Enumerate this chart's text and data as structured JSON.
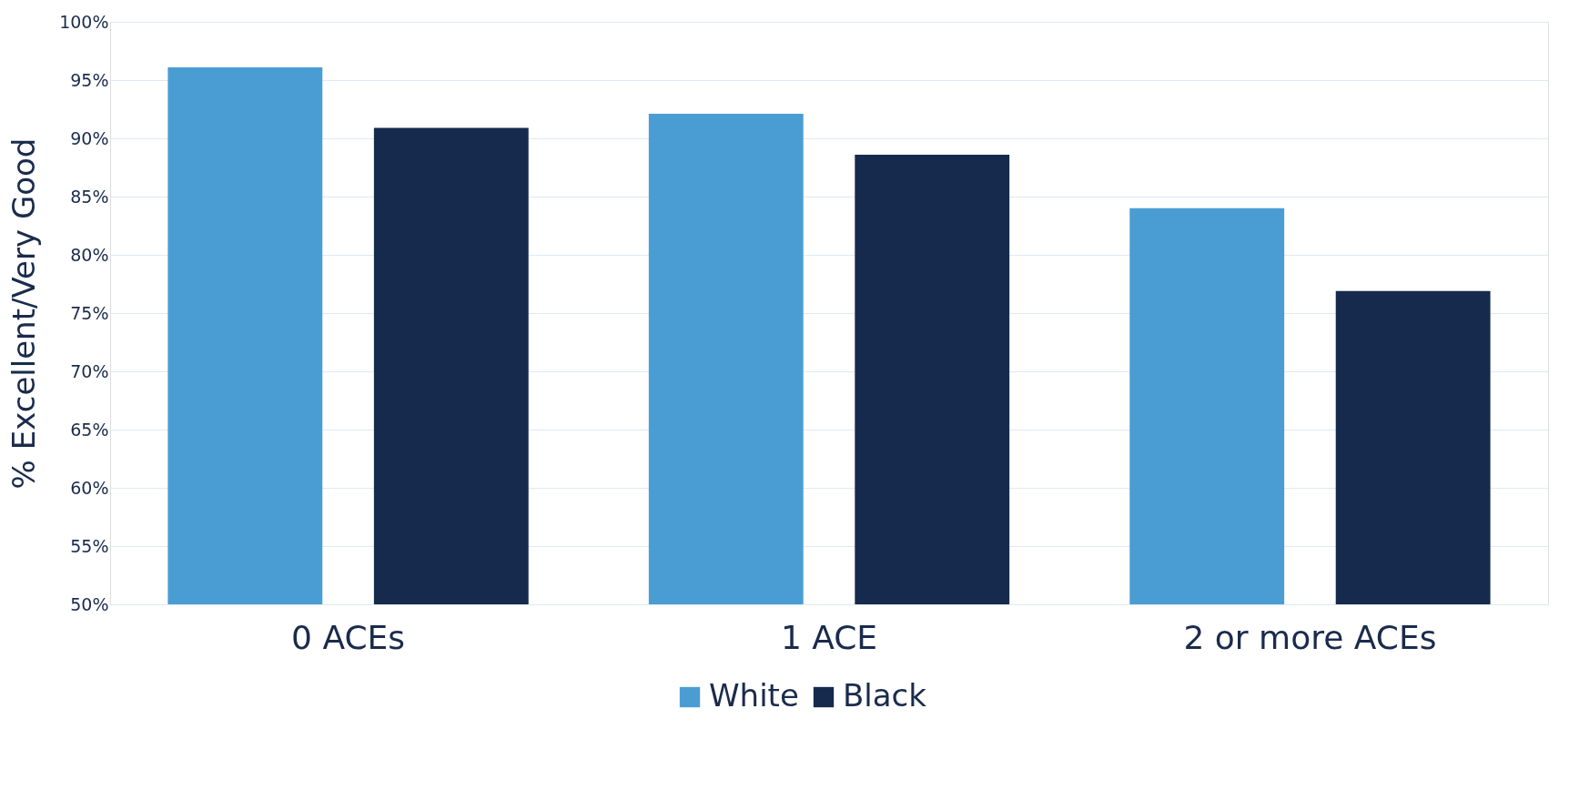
{
  "chart_data": {
    "type": "bar",
    "ylabel": "% Excellent/Very Good",
    "categories": [
      "0 ACEs",
      "1 ACE",
      "2 or more ACEs"
    ],
    "series": [
      {
        "name": "White",
        "color": "#4a9dd3",
        "values": [
          96.1,
          92.1,
          84.0
        ]
      },
      {
        "name": "Black",
        "color": "#162a4d",
        "values": [
          90.9,
          88.6,
          76.9
        ]
      }
    ],
    "ylim": [
      50,
      100
    ],
    "yticks": [
      {
        "value": 50,
        "label": "50%"
      },
      {
        "value": 55,
        "label": "55%"
      },
      {
        "value": 60,
        "label": "60%"
      },
      {
        "value": 65,
        "label": "65%"
      },
      {
        "value": 70,
        "label": "70%"
      },
      {
        "value": 75,
        "label": "75%"
      },
      {
        "value": 80,
        "label": "80%"
      },
      {
        "value": 85,
        "label": "85%"
      },
      {
        "value": 90,
        "label": "90%"
      },
      {
        "value": 95,
        "label": "95%"
      },
      {
        "value": 100,
        "label": "100%"
      }
    ],
    "grid": "y",
    "legend": "bottom"
  }
}
